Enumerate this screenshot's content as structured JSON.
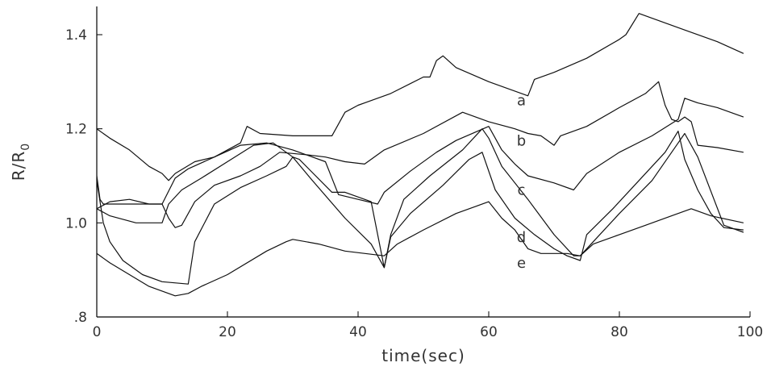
{
  "chart_data": {
    "type": "line",
    "xlabel": "time(sec)",
    "ylabel": "R/R",
    "ylabel_subscript": "0",
    "xlim": [
      0,
      100
    ],
    "ylim": [
      0.8,
      1.46
    ],
    "x_ticks": [
      0,
      20,
      40,
      60,
      80,
      100
    ],
    "x_tick_labels": [
      "0",
      "20",
      "40",
      "60",
      "80",
      "100"
    ],
    "y_ticks": [
      0.8,
      1.0,
      1.2,
      1.4
    ],
    "y_tick_labels": [
      ".8",
      "1.0",
      "1.2",
      "1.4"
    ],
    "grid": false,
    "series": [
      {
        "name": "a",
        "label_at": [
          65,
          1.26
        ],
        "points": [
          [
            0,
            1.2
          ],
          [
            2,
            1.18
          ],
          [
            5,
            1.155
          ],
          [
            8,
            1.12
          ],
          [
            10,
            1.105
          ],
          [
            11,
            1.09
          ],
          [
            12,
            1.105
          ],
          [
            15,
            1.13
          ],
          [
            18,
            1.14
          ],
          [
            22,
            1.17
          ],
          [
            23,
            1.205
          ],
          [
            25,
            1.19
          ],
          [
            30,
            1.185
          ],
          [
            36,
            1.185
          ],
          [
            38,
            1.235
          ],
          [
            40,
            1.25
          ],
          [
            45,
            1.275
          ],
          [
            50,
            1.31
          ],
          [
            51,
            1.31
          ],
          [
            52,
            1.345
          ],
          [
            53,
            1.355
          ],
          [
            55,
            1.33
          ],
          [
            60,
            1.3
          ],
          [
            66,
            1.27
          ],
          [
            67,
            1.305
          ],
          [
            70,
            1.32
          ],
          [
            75,
            1.35
          ],
          [
            80,
            1.39
          ],
          [
            81,
            1.4
          ],
          [
            83,
            1.445
          ],
          [
            85,
            1.435
          ],
          [
            90,
            1.41
          ],
          [
            95,
            1.385
          ],
          [
            99,
            1.36
          ]
        ]
      },
      {
        "name": "b",
        "label_at": [
          65,
          1.175
        ],
        "points": [
          [
            0,
            1.1
          ],
          [
            0.5,
            1.05
          ],
          [
            1,
            1.04
          ],
          [
            4,
            1.04
          ],
          [
            8,
            1.04
          ],
          [
            10,
            1.04
          ],
          [
            11,
            1.01
          ],
          [
            12,
            0.99
          ],
          [
            13,
            0.995
          ],
          [
            15,
            1.045
          ],
          [
            18,
            1.08
          ],
          [
            22,
            1.1
          ],
          [
            25,
            1.12
          ],
          [
            28,
            1.15
          ],
          [
            32,
            1.145
          ],
          [
            35,
            1.14
          ],
          [
            38,
            1.13
          ],
          [
            41,
            1.125
          ],
          [
            44,
            1.155
          ],
          [
            50,
            1.19
          ],
          [
            56,
            1.235
          ],
          [
            60,
            1.215
          ],
          [
            64,
            1.2
          ],
          [
            66,
            1.19
          ],
          [
            68,
            1.185
          ],
          [
            69,
            1.175
          ],
          [
            70,
            1.165
          ],
          [
            71,
            1.185
          ],
          [
            75,
            1.205
          ],
          [
            80,
            1.245
          ],
          [
            84,
            1.275
          ],
          [
            86,
            1.3
          ],
          [
            87,
            1.25
          ],
          [
            88,
            1.22
          ],
          [
            89,
            1.215
          ],
          [
            90,
            1.225
          ],
          [
            91,
            1.215
          ],
          [
            92,
            1.165
          ],
          [
            95,
            1.16
          ],
          [
            99,
            1.15
          ]
        ]
      },
      {
        "name": "c",
        "label_at": [
          65,
          1.07
        ],
        "points": [
          [
            0,
            1.03
          ],
          [
            2,
            1.045
          ],
          [
            5,
            1.05
          ],
          [
            8,
            1.04
          ],
          [
            10,
            1.04
          ],
          [
            12,
            1.095
          ],
          [
            14,
            1.115
          ],
          [
            18,
            1.14
          ],
          [
            22,
            1.165
          ],
          [
            26,
            1.17
          ],
          [
            30,
            1.155
          ],
          [
            35,
            1.13
          ],
          [
            37,
            1.06
          ],
          [
            40,
            1.05
          ],
          [
            43,
            1.04
          ],
          [
            44,
            1.065
          ],
          [
            48,
            1.11
          ],
          [
            52,
            1.15
          ],
          [
            55,
            1.175
          ],
          [
            60,
            1.205
          ],
          [
            62,
            1.155
          ],
          [
            64,
            1.125
          ],
          [
            66,
            1.1
          ],
          [
            70,
            1.085
          ],
          [
            73,
            1.07
          ],
          [
            75,
            1.105
          ],
          [
            80,
            1.15
          ],
          [
            85,
            1.185
          ],
          [
            89,
            1.22
          ],
          [
            90,
            1.265
          ],
          [
            92,
            1.255
          ],
          [
            95,
            1.245
          ],
          [
            99,
            1.225
          ]
        ]
      },
      {
        "name": "d",
        "label_at": [
          65,
          0.97
        ],
        "points": [
          [
            0,
            1.03
          ],
          [
            2,
            1.015
          ],
          [
            6,
            1.0
          ],
          [
            9,
            1.0
          ],
          [
            10,
            1.0
          ],
          [
            11,
            1.04
          ],
          [
            13,
            1.07
          ],
          [
            16,
            1.095
          ],
          [
            20,
            1.13
          ],
          [
            24,
            1.165
          ],
          [
            27,
            1.17
          ],
          [
            30,
            1.14
          ],
          [
            33,
            1.09
          ],
          [
            38,
            1.01
          ],
          [
            42,
            0.955
          ],
          [
            44,
            0.905
          ],
          [
            45,
            0.97
          ],
          [
            48,
            1.02
          ],
          [
            53,
            1.08
          ],
          [
            57,
            1.135
          ],
          [
            59,
            1.15
          ],
          [
            61,
            1.07
          ],
          [
            64,
            1.01
          ],
          [
            67,
            0.975
          ],
          [
            70,
            0.945
          ],
          [
            72,
            0.93
          ],
          [
            74,
            0.92
          ],
          [
            75,
            0.975
          ],
          [
            79,
            1.03
          ],
          [
            83,
            1.09
          ],
          [
            87,
            1.15
          ],
          [
            89,
            1.195
          ],
          [
            90,
            1.135
          ],
          [
            92,
            1.07
          ],
          [
            94,
            1.02
          ],
          [
            96,
            0.99
          ],
          [
            99,
            0.985
          ]
        ]
      },
      {
        "name": "e",
        "label_at": [
          65,
          0.915
        ],
        "points": [
          [
            0,
            0.935
          ],
          [
            2,
            0.915
          ],
          [
            5,
            0.89
          ],
          [
            8,
            0.865
          ],
          [
            10,
            0.855
          ],
          [
            12,
            0.845
          ],
          [
            14,
            0.85
          ],
          [
            16,
            0.865
          ],
          [
            20,
            0.89
          ],
          [
            26,
            0.94
          ],
          [
            29,
            0.96
          ],
          [
            30,
            0.965
          ],
          [
            34,
            0.955
          ],
          [
            38,
            0.94
          ],
          [
            44,
            0.93
          ],
          [
            46,
            0.955
          ],
          [
            50,
            0.985
          ],
          [
            55,
            1.02
          ],
          [
            58,
            1.035
          ],
          [
            60,
            1.045
          ],
          [
            62,
            1.01
          ],
          [
            64,
            0.985
          ],
          [
            66,
            0.945
          ],
          [
            68,
            0.935
          ],
          [
            72,
            0.935
          ],
          [
            74,
            0.93
          ],
          [
            76,
            0.955
          ],
          [
            80,
            0.975
          ],
          [
            84,
            0.995
          ],
          [
            88,
            1.015
          ],
          [
            91,
            1.03
          ],
          [
            94,
            1.015
          ],
          [
            99,
            1.0
          ]
        ]
      },
      {
        "name": "",
        "label_at": null,
        "points": [
          [
            0,
            1.09
          ],
          [
            1,
            1.0
          ],
          [
            2,
            0.96
          ],
          [
            4,
            0.92
          ],
          [
            7,
            0.89
          ],
          [
            10,
            0.875
          ],
          [
            14,
            0.87
          ],
          [
            15,
            0.96
          ],
          [
            18,
            1.04
          ],
          [
            22,
            1.075
          ],
          [
            26,
            1.1
          ],
          [
            29,
            1.12
          ],
          [
            30,
            1.14
          ],
          [
            31,
            1.135
          ],
          [
            36,
            1.065
          ],
          [
            38,
            1.065
          ],
          [
            42,
            1.045
          ],
          [
            44,
            0.905
          ],
          [
            45,
            0.975
          ],
          [
            47,
            1.05
          ],
          [
            51,
            1.1
          ],
          [
            56,
            1.155
          ],
          [
            59,
            1.2
          ],
          [
            60,
            1.18
          ],
          [
            62,
            1.12
          ],
          [
            66,
            1.05
          ],
          [
            70,
            0.975
          ],
          [
            73,
            0.93
          ],
          [
            74,
            0.93
          ],
          [
            76,
            0.96
          ],
          [
            80,
            1.02
          ],
          [
            85,
            1.09
          ],
          [
            89,
            1.17
          ],
          [
            90,
            1.19
          ],
          [
            92,
            1.14
          ],
          [
            96,
            0.995
          ],
          [
            99,
            0.98
          ]
        ]
      }
    ]
  }
}
